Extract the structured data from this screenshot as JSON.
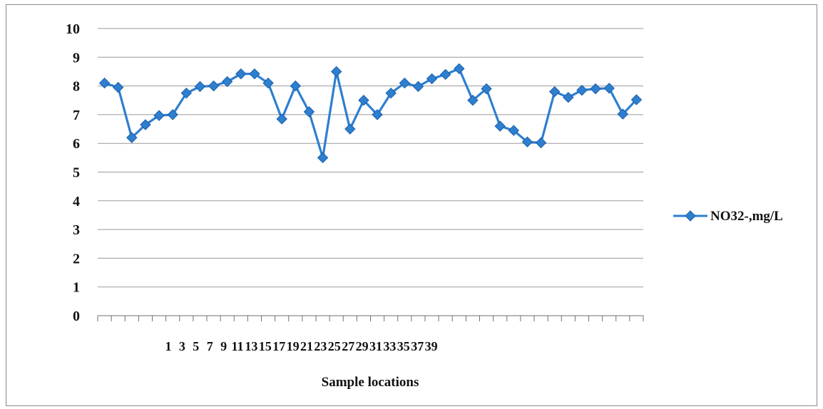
{
  "chart_data": {
    "type": "line",
    "title": "",
    "xlabel": "Sample locations",
    "ylabel": "",
    "ylim": [
      0,
      10
    ],
    "y_ticks": [
      "0",
      "1",
      "2",
      "3",
      "4",
      "5",
      "6",
      "7",
      "8",
      "9",
      "10"
    ],
    "x_tick_labels": [
      "1",
      "3",
      "5",
      "7",
      "9",
      "11",
      "13",
      "15",
      "17",
      "19",
      "21",
      "23",
      "25",
      "27",
      "29",
      "31",
      "33",
      "35",
      "37",
      "39"
    ],
    "grid": "horizontal",
    "legend_position": "right",
    "series": [
      {
        "name": "NO32-,mg/L",
        "color": "#2e7fd0",
        "marker": "diamond",
        "values": [
          8.1,
          7.95,
          6.2,
          6.65,
          6.97,
          7.0,
          7.75,
          7.98,
          8.0,
          8.15,
          8.42,
          8.42,
          8.1,
          6.85,
          8.0,
          7.1,
          5.5,
          8.5,
          6.5,
          7.5,
          7.0,
          7.75,
          8.1,
          7.98,
          8.25,
          8.4,
          8.6,
          7.5,
          7.9,
          6.6,
          6.45,
          6.05,
          6.02,
          7.8,
          7.6,
          7.85,
          7.9,
          7.92,
          7.02,
          7.52
        ]
      }
    ]
  }
}
